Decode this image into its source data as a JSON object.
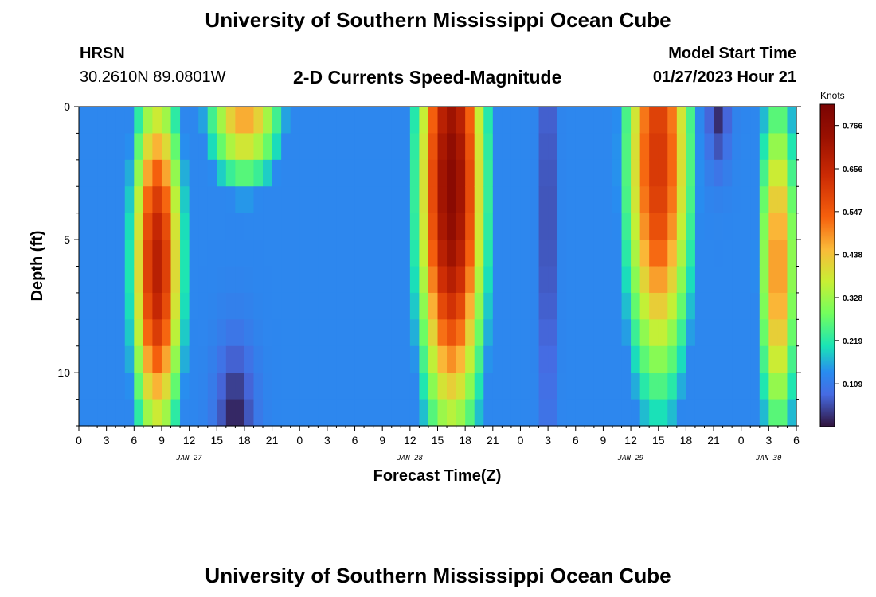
{
  "header": {
    "title": "University of Southern Mississippi Ocean Cube",
    "station": "HRSN",
    "coords": "30.2610N  89.0801W",
    "chart_title": "2-D Currents Speed-Magnitude",
    "model_label": "Model Start Time",
    "model_date": "01/27/2023 Hour 21"
  },
  "footer": {
    "title": "University of Southern Mississippi Ocean Cube"
  },
  "chart_data": {
    "type": "heatmap",
    "title": "2-D Currents Speed-Magnitude",
    "xlabel": "Forecast Time(Z)",
    "ylabel": "Depth (ft)",
    "xlim": [
      0,
      78
    ],
    "ylim": [
      0,
      12
    ],
    "x_ticks": [
      {
        "hour": 0,
        "label": "0"
      },
      {
        "hour": 3,
        "label": "3"
      },
      {
        "hour": 6,
        "label": "6"
      },
      {
        "hour": 9,
        "label": "9"
      },
      {
        "hour": 12,
        "label": "12"
      },
      {
        "hour": 15,
        "label": "15"
      },
      {
        "hour": 18,
        "label": "18"
      },
      {
        "hour": 21,
        "label": "21"
      },
      {
        "hour": 24,
        "label": "0"
      },
      {
        "hour": 27,
        "label": "3"
      },
      {
        "hour": 30,
        "label": "6"
      },
      {
        "hour": 33,
        "label": "9"
      },
      {
        "hour": 36,
        "label": "12"
      },
      {
        "hour": 39,
        "label": "15"
      },
      {
        "hour": 42,
        "label": "18"
      },
      {
        "hour": 45,
        "label": "21"
      },
      {
        "hour": 48,
        "label": "0"
      },
      {
        "hour": 51,
        "label": "3"
      },
      {
        "hour": 54,
        "label": "6"
      },
      {
        "hour": 57,
        "label": "9"
      },
      {
        "hour": 60,
        "label": "12"
      },
      {
        "hour": 63,
        "label": "15"
      },
      {
        "hour": 66,
        "label": "18"
      },
      {
        "hour": 69,
        "label": "21"
      },
      {
        "hour": 72,
        "label": "0"
      },
      {
        "hour": 75,
        "label": "3"
      },
      {
        "hour": 78,
        "label": "6"
      }
    ],
    "date_labels": [
      {
        "hour": 12,
        "label": "JAN 27"
      },
      {
        "hour": 36,
        "label": "JAN 28"
      },
      {
        "hour": 60,
        "label": "JAN 29"
      },
      {
        "hour": 75,
        "label": "JAN 30"
      }
    ],
    "y_ticks": [
      {
        "depth": 0,
        "label": "0"
      },
      {
        "depth": 5,
        "label": "5"
      },
      {
        "depth": 10,
        "label": "10"
      }
    ],
    "colorbar": {
      "unit": "Knots",
      "min": 0,
      "max": 0.82,
      "ticks": [
        "0.766",
        "0.656",
        "0.547",
        "0.438",
        "0.328",
        "0.219",
        "0.109"
      ],
      "tick_values": [
        0.766,
        0.656,
        0.547,
        0.438,
        0.328,
        0.219,
        0.109
      ]
    },
    "speed_field": {
      "description_units": "Knots; speed as a function of forecast hour and depth (ft)",
      "background": 0.13,
      "blobs": [
        {
          "center_hour": 8.5,
          "center_depth": 6.0,
          "hour_half_width": 2.9,
          "depth_half_height": 7.5,
          "peak": 0.68
        },
        {
          "center_hour": 18.0,
          "center_depth": 0.0,
          "hour_half_width": 4.5,
          "depth_half_height": 3.4,
          "peak": 0.48
        },
        {
          "center_hour": 40.5,
          "center_depth": 3.0,
          "hour_half_width": 3.8,
          "depth_half_height": 10.0,
          "peak": 0.78
        },
        {
          "center_hour": 63.0,
          "center_depth": 2.0,
          "hour_half_width": 3.9,
          "depth_half_height": 9.5,
          "peak": 0.62
        },
        {
          "center_hour": 76.0,
          "center_depth": 6.0,
          "hour_half_width": 2.3,
          "depth_half_height": 7.5,
          "peak": 0.5
        }
      ],
      "lows": [
        {
          "center_hour": 17.0,
          "center_depth": 12.0,
          "hour_half_width": 2.0,
          "depth_half_height": 3.0,
          "value": 0.01
        },
        {
          "center_hour": 51.0,
          "center_depth": 4.0,
          "hour_half_width": 0.8,
          "depth_half_height": 9.0,
          "value": 0.03
        },
        {
          "center_hour": 69.5,
          "center_depth": 0.0,
          "hour_half_width": 1.2,
          "depth_half_height": 2.2,
          "value": 0.02
        }
      ]
    }
  }
}
